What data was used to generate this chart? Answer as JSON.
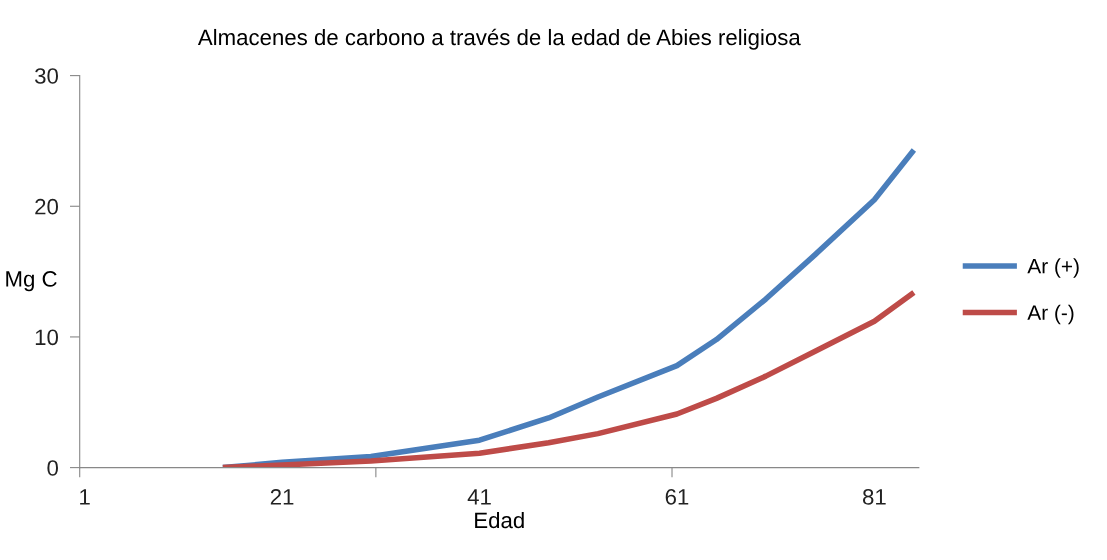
{
  "chart_data": {
    "type": "line",
    "title": "Almacenes de carbono a través de la edad de Abies religiosa",
    "xlabel": "Edad",
    "ylabel": "Mg C",
    "x": [
      15,
      21,
      30,
      41,
      48,
      53,
      61,
      65,
      70,
      75,
      81,
      85
    ],
    "series": [
      {
        "name": "Ar (+)",
        "color": "#4a7ebb",
        "values": [
          0,
          0.4,
          0.85,
          2.1,
          3.8,
          5.4,
          7.8,
          9.8,
          12.9,
          16.3,
          20.5,
          24.3
        ]
      },
      {
        "name": "Ar (-)",
        "color": "#be4b48",
        "values": [
          0,
          0.2,
          0.5,
          1.1,
          1.9,
          2.6,
          4.1,
          5.3,
          7.0,
          8.9,
          11.2,
          13.4
        ]
      }
    ],
    "xlim": [
      0.5,
      85.5
    ],
    "xticks": [
      {
        "value": 0.5,
        "label": null
      },
      1,
      21,
      {
        "value": 30.5,
        "label": null
      },
      41,
      61,
      {
        "value": 60.5,
        "label": null
      },
      81
    ],
    "ylim": [
      0,
      30
    ],
    "yticks": [
      0,
      10,
      20,
      30
    ],
    "grid": false,
    "legend": "right",
    "marker": "none",
    "line_style": "solid"
  }
}
